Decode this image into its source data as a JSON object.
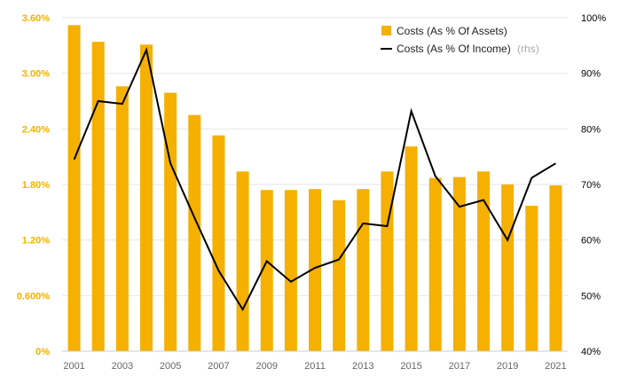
{
  "chart_data": {
    "type": "bar+line",
    "title": "",
    "categories": [
      "2001",
      "2002",
      "2003",
      "2004",
      "2005",
      "2006",
      "2007",
      "2008",
      "2009",
      "2010",
      "2011",
      "2012",
      "2013",
      "2014",
      "2015",
      "2016",
      "2017",
      "2018",
      "2019",
      "2020",
      "2021"
    ],
    "x_tick_labels": [
      "2001",
      "2003",
      "2005",
      "2007",
      "2009",
      "2011",
      "2013",
      "2015",
      "2017",
      "2019",
      "2021"
    ],
    "series": [
      {
        "name": "Costs (As % Of Assets)",
        "type": "bar",
        "axis": "left",
        "color": "#f5b000",
        "values": [
          3.52,
          3.34,
          2.86,
          3.31,
          2.79,
          2.55,
          2.33,
          1.94,
          1.74,
          1.74,
          1.75,
          1.63,
          1.75,
          1.94,
          2.21,
          1.87,
          1.88,
          1.94,
          1.8,
          1.57,
          1.79
        ]
      },
      {
        "name": "Costs (As % Of Income)",
        "name_note": "(rhs)",
        "type": "line",
        "axis": "right",
        "color": "#000000",
        "values": [
          74.5,
          85.0,
          84.5,
          94.2,
          73.8,
          64.0,
          54.5,
          47.5,
          56.2,
          52.5,
          55.0,
          56.5,
          63.0,
          62.5,
          83.2,
          71.5,
          66.0,
          67.2,
          60.0,
          71.2,
          73.8
        ]
      }
    ],
    "y_left": {
      "ylim": [
        0,
        3.6
      ],
      "ticks": [
        0,
        0.6,
        1.2,
        1.8,
        2.4,
        3.0,
        3.6
      ],
      "tick_labels": [
        "0%",
        "0.600%",
        "1.20%",
        "1.80%",
        "2.40%",
        "3.00%",
        "3.60%"
      ]
    },
    "y_right": {
      "ylim": [
        40,
        100
      ],
      "ticks": [
        40,
        50,
        60,
        70,
        80,
        90,
        100
      ],
      "tick_labels": [
        "40%",
        "50%",
        "60%",
        "70%",
        "80%",
        "90%",
        "100%"
      ]
    },
    "grid": true,
    "legend_position": "top-right"
  }
}
